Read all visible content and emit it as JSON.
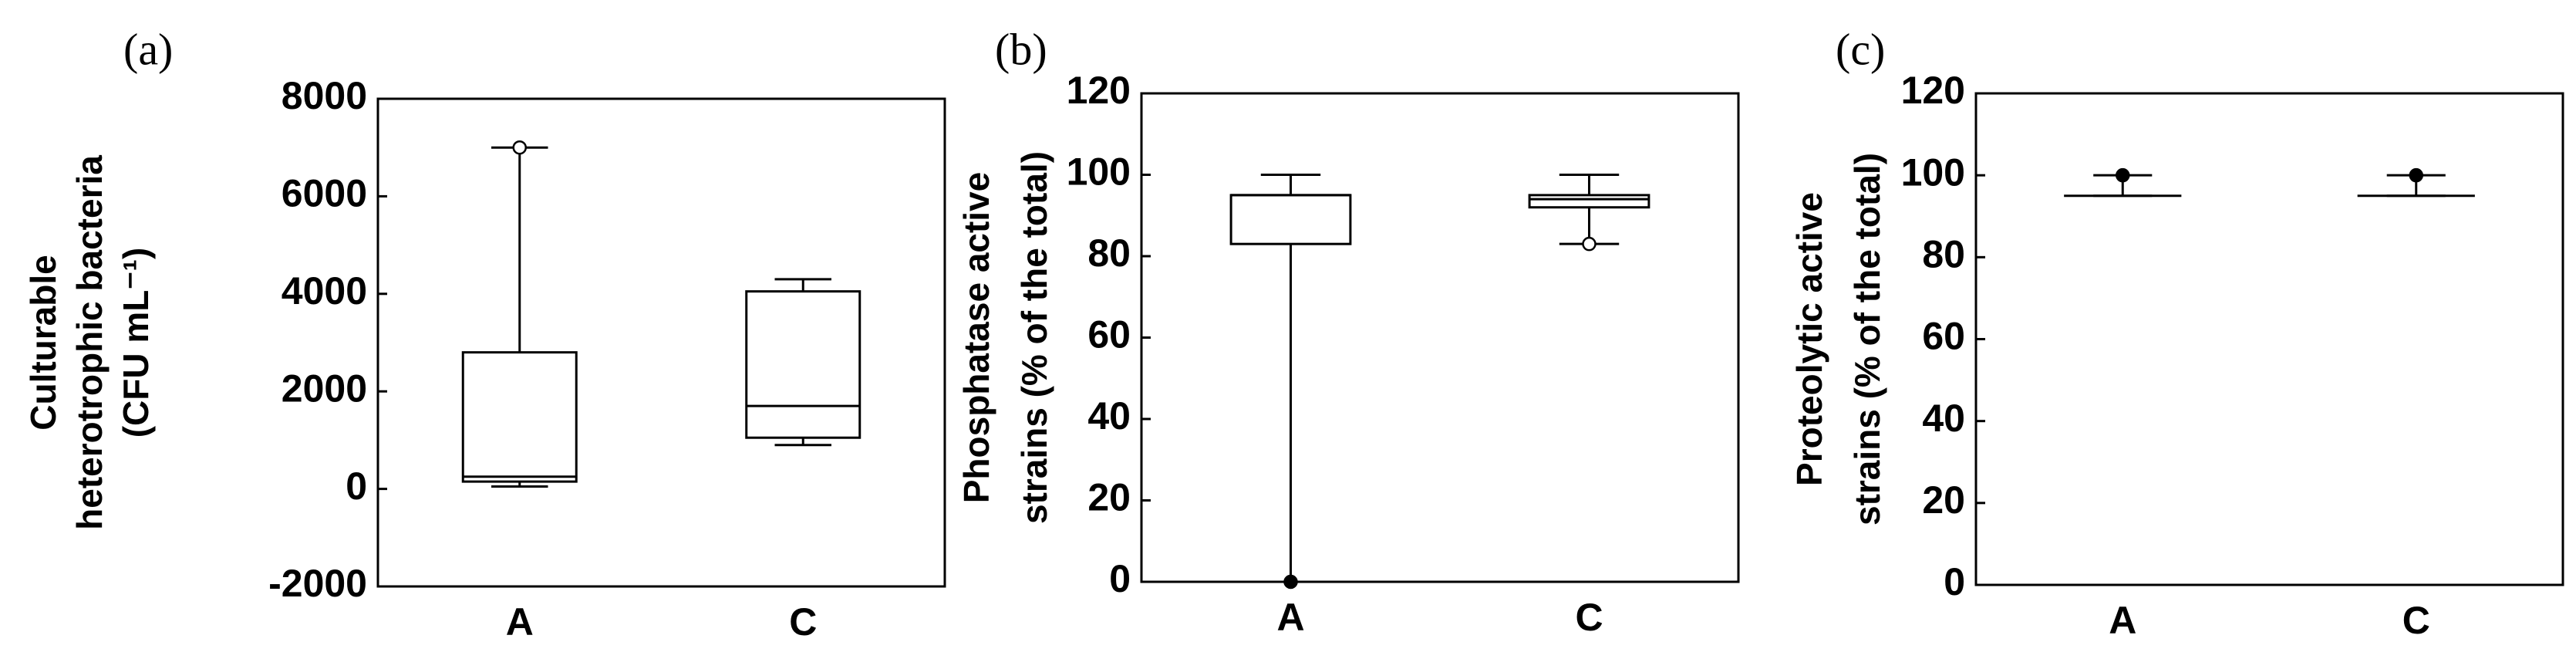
{
  "chart_data": [
    {
      "type": "box",
      "panel_label": "(a)",
      "ylabel": [
        "Culturable",
        "heterotrophic bacteria",
        "(CFU mL⁻¹)"
      ],
      "categories": [
        "A",
        "C"
      ],
      "boxes": [
        {
          "low": 50,
          "q1": 150,
          "median": 250,
          "q3": 2800,
          "high": 7000
        },
        {
          "low": 900,
          "q1": 1050,
          "median": 1700,
          "q3": 4050,
          "high": 4300
        }
      ],
      "outliers": [
        [
          {
            "value": 7000,
            "fill": "#ffffff"
          }
        ],
        []
      ],
      "ylim": [
        -2000,
        8000
      ],
      "yticks": [
        -2000,
        0,
        2000,
        4000,
        6000,
        8000
      ],
      "color": "#000000"
    },
    {
      "type": "box",
      "panel_label": "(b)",
      "ylabel": [
        "Phosphatase active",
        "strains (% of the total)"
      ],
      "categories": [
        "A",
        "C"
      ],
      "boxes": [
        {
          "low": 0,
          "q1": 83,
          "median": 95,
          "q3": 95,
          "high": 100
        },
        {
          "low": 83,
          "q1": 92,
          "median": 94,
          "q3": 95,
          "high": 100
        }
      ],
      "outliers": [
        [
          {
            "value": 0,
            "fill": "#000000"
          }
        ],
        [
          {
            "value": 83,
            "fill": "#ffffff"
          }
        ]
      ],
      "ylim": [
        0,
        120
      ],
      "yticks": [
        0,
        20,
        40,
        60,
        80,
        100,
        120
      ],
      "color": "#000000"
    },
    {
      "type": "box",
      "panel_label": "(c)",
      "ylabel": [
        "Proteolytic active",
        "strains (% of the total)"
      ],
      "categories": [
        "A",
        "C"
      ],
      "boxes": [
        {
          "low": 95,
          "q1": 95,
          "median": 95,
          "q3": 95,
          "high": 100
        },
        {
          "low": 95,
          "q1": 95,
          "median": 95,
          "q3": 95,
          "high": 100
        }
      ],
      "outliers": [
        [
          {
            "value": 100,
            "fill": "#000000"
          }
        ],
        [
          {
            "value": 100,
            "fill": "#000000"
          }
        ]
      ],
      "ylim": [
        0,
        120
      ],
      "yticks": [
        0,
        20,
        40,
        60,
        80,
        100,
        120
      ],
      "color": "#000000"
    }
  ]
}
